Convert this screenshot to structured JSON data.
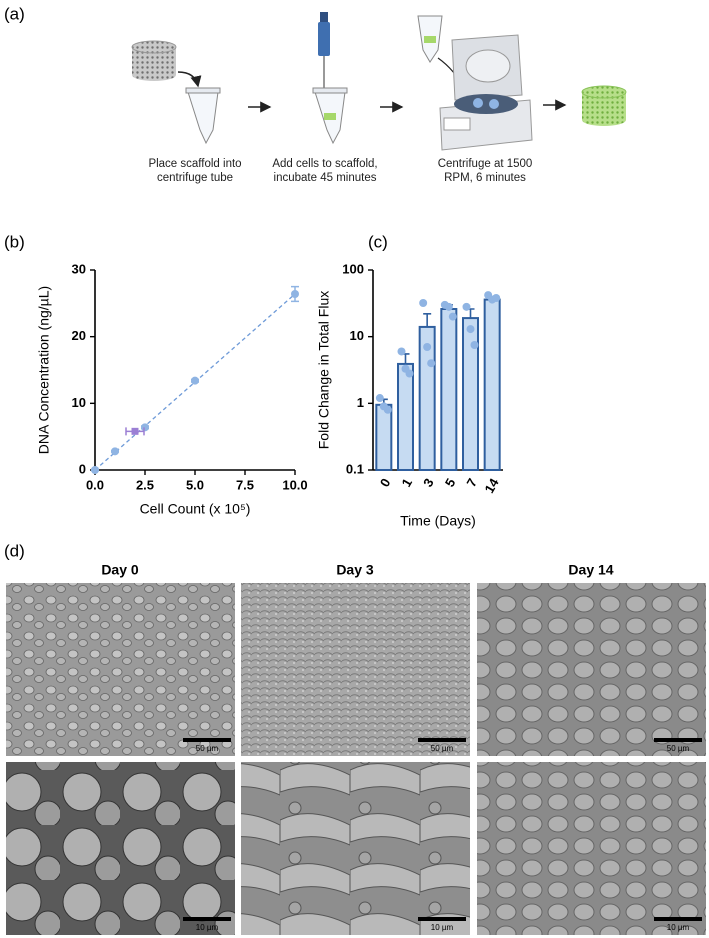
{
  "panel_a": {
    "panel_label": "(a)",
    "steps": [
      "Place scaffold into centrifuge tube",
      "Add cells to scaffold, incubate 45 minutes",
      "Centrifuge at 1500 RPM, 6 minutes"
    ]
  },
  "chart_data": [
    {
      "type": "scatter",
      "panel_label": "(b)",
      "x_label": "Cell Count (x 10⁵)",
      "y_label": "DNA Concentration (ng/µL)",
      "xlim": [
        0,
        10
      ],
      "xticks": [
        {
          "value": 0,
          "label": "0.0"
        },
        2.5,
        {
          "value": 5,
          "label": "5.0"
        },
        7.5,
        {
          "value": 10,
          "label": "10.0"
        }
      ],
      "ylim": [
        0,
        30
      ],
      "yticks": [
        0,
        10,
        20,
        30
      ],
      "series": [
        {
          "color": "#8fb4e3",
          "x": [
            0,
            1,
            2.5,
            5,
            10
          ],
          "values": [
            0,
            2.8,
            6.4,
            13.4,
            26.4
          ],
          "errors": [
            0.1,
            0.1,
            0.2,
            0.2,
            1.1
          ]
        },
        {
          "color": "#9b7fd4",
          "x": [
            2
          ],
          "values": [
            5.8
          ],
          "x_errors": [
            0.45
          ]
        }
      ],
      "fit": {
        "color": "#6f9bd8",
        "x": [
          0,
          10
        ],
        "values": [
          0,
          26.4
        ]
      }
    },
    {
      "type": "bar",
      "panel_label": "(c)",
      "x_label": "Time (Days)",
      "y_label": "Fold Change in Total Flux",
      "log_scale": true,
      "categories": [
        "0",
        "1",
        "3",
        "5",
        "7",
        "14"
      ],
      "values": [
        0.95,
        3.9,
        14,
        26,
        19,
        36
      ],
      "errors": [
        0.2,
        1.6,
        8,
        4,
        7,
        3
      ],
      "points": [
        [
          1.2,
          0.9,
          0.8
        ],
        [
          6,
          3.3,
          2.8
        ],
        [
          32,
          7,
          4
        ],
        [
          30,
          28,
          20
        ],
        [
          28,
          13,
          7.5
        ],
        [
          42,
          36,
          38
        ]
      ],
      "color": "#c6dbf2",
      "edge_color": "#2f5f9f",
      "point_color": "#8fb4e3",
      "ylim": [
        0.1,
        100
      ],
      "yticks": [
        0.1,
        1,
        10,
        100
      ]
    }
  ],
  "panel_d": {
    "panel_label": "(d)",
    "columns": [
      "Day 0",
      "Day 3",
      "Day 14"
    ],
    "scale_bars": [
      [
        "50 µm",
        "50 µm",
        "50 µm"
      ],
      [
        "10 µm",
        "10 µm",
        "10 µm"
      ]
    ]
  }
}
